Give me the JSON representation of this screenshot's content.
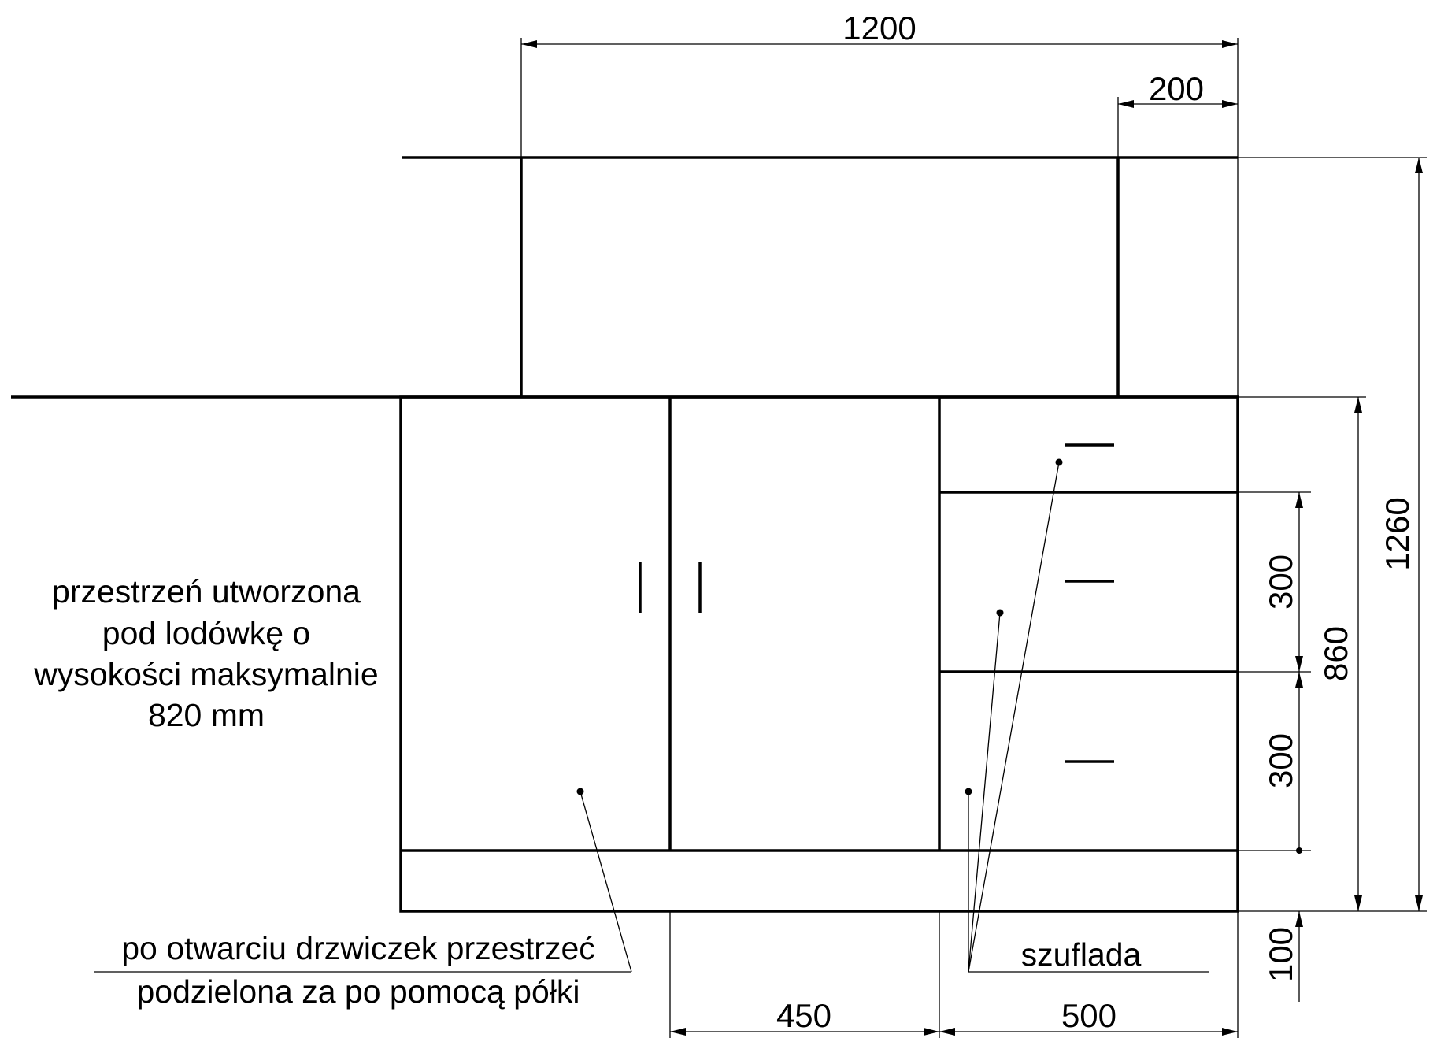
{
  "dimensions": {
    "total_width": "1200",
    "right_gap": "200",
    "total_height": "1260",
    "cabinet_height": "860",
    "drawer_height_1": "300",
    "drawer_height_2": "300",
    "plinth": "100",
    "door_width": "450",
    "drawer_width": "500"
  },
  "annotations": {
    "fridge_space": [
      "przestrzeń utworzona",
      "pod lodówkę o",
      "wysokości maksymalnie",
      "820 mm"
    ],
    "shelf_note": [
      "po otwarciu drzwiczek przestrzeć",
      "podzielona za po pomocą półki"
    ],
    "drawer": "szuflada"
  }
}
